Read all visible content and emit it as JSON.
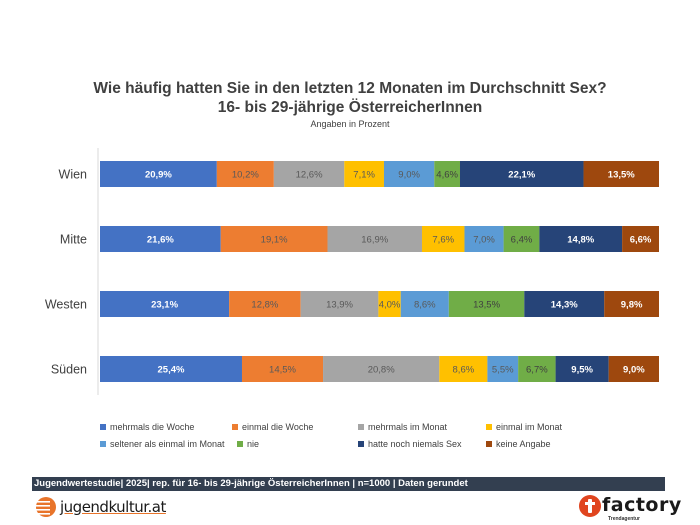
{
  "chart_data": {
    "type": "bar",
    "orientation": "horizontal",
    "stacked": true,
    "title": "Wie häufig hatten Sie in den letzten 12 Monaten im Durchschnitt Sex?",
    "subtitle": "16- bis 29-jährige ÖsterreicherInnen",
    "note": "Angaben in Prozent",
    "xlabel": "",
    "ylabel": "",
    "xlim": [
      0,
      100
    ],
    "grid": false,
    "legend_position": "bottom",
    "categories": [
      "Wien",
      "Mitte",
      "Westen",
      "Süden"
    ],
    "series": [
      {
        "name": "mehrmals die Woche",
        "color": "#4472c4",
        "label_color": "#ffffff",
        "values": [
          20.9,
          21.6,
          23.1,
          25.4
        ],
        "labels": [
          "20,9%",
          "21,6%",
          "23,1%",
          "25,4%"
        ]
      },
      {
        "name": "einmal die Woche",
        "color": "#ed7d31",
        "label_color": "#595959",
        "values": [
          10.2,
          19.1,
          12.8,
          14.5
        ],
        "labels": [
          "10,2%",
          "19,1%",
          "12,8%",
          "14,5%"
        ]
      },
      {
        "name": "mehrmals im Monat",
        "color": "#a5a5a5",
        "label_color": "#595959",
        "values": [
          12.6,
          16.9,
          13.9,
          20.8
        ],
        "labels": [
          "12,6%",
          "16,9%",
          "13,9%",
          "20,8%"
        ]
      },
      {
        "name": "einmal im Monat",
        "color": "#ffc000",
        "label_color": "#595959",
        "values": [
          7.1,
          7.6,
          4.0,
          8.6
        ],
        "labels": [
          "7,1%",
          "7,6%",
          "4,0%",
          "8,6%"
        ]
      },
      {
        "name": "seltener als einmal im Monat",
        "color": "#5b9bd5",
        "label_color": "#595959",
        "values": [
          9.0,
          7.0,
          8.6,
          5.5
        ],
        "labels": [
          "9,0%",
          "7,0%",
          "8,6%",
          "5,5%"
        ]
      },
      {
        "name": "nie",
        "color": "#70ad47",
        "label_color": "#404040",
        "values": [
          4.6,
          6.4,
          13.5,
          6.7
        ],
        "labels": [
          "4,6%",
          "6,4%",
          "13,5%",
          "6,7%"
        ]
      },
      {
        "name": "hatte noch niemals Sex",
        "color": "#264478",
        "label_color": "#ffffff",
        "values": [
          22.1,
          14.8,
          14.3,
          9.5
        ],
        "labels": [
          "22,1%",
          "14,8%",
          "14,3%",
          "9,5%"
        ]
      },
      {
        "name": "keine Angabe",
        "color": "#9e480e",
        "label_color": "#ffffff",
        "values": [
          13.5,
          6.6,
          9.8,
          9.0
        ],
        "labels": [
          "13,5%",
          "6,6%",
          "9,8%",
          "9,0%"
        ]
      }
    ]
  },
  "footer": {
    "text": "Jugendwertestudie| 2025| rep. für 16- bis 29-jährige ÖsterreicherInnen | n=1000 | Daten gerundet",
    "logo_left": "jugendkultur.at",
    "logo_right": "factory",
    "logo_right_sub": "Trendagentur"
  }
}
